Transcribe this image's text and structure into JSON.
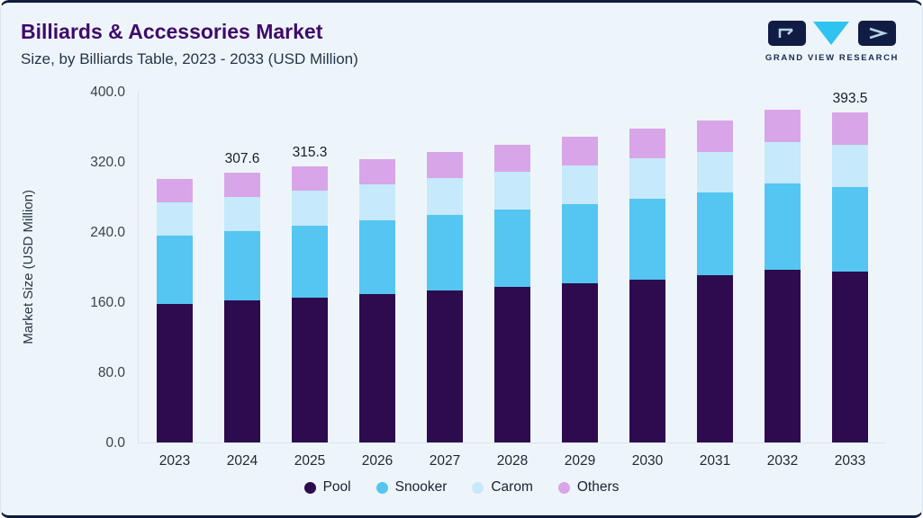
{
  "header": {
    "title": "Billiards & Accessories Market",
    "subtitle": "Size, by Billiards Table, 2023 - 2033 (USD Million)",
    "logo_text": "GRAND VIEW RESEARCH"
  },
  "colors": {
    "background": "#eef5fa",
    "card_border_accent": "#0d1d3d",
    "title": "#3f0a68",
    "logo_navy": "#101c44",
    "logo_cyan": "#31c3ef",
    "pool": "#2d0b4e",
    "snooker": "#54c6f1",
    "carom": "#c6e9fb",
    "others": "#d8a5e8"
  },
  "chart_data": {
    "type": "bar",
    "stacked": true,
    "title": "Billiards & Accessories Market Size, by Billiards Table, 2023 - 2033 (USD Million)",
    "ylabel": "Market Size (USD Million)",
    "ylim": [
      0,
      400
    ],
    "yticks": [
      0,
      80,
      160,
      240,
      320,
      400
    ],
    "ytick_labels": [
      "0.0",
      "80.0",
      "160.0",
      "240.0",
      "320.0",
      "400.0"
    ],
    "grid": false,
    "legend_position": "bottom",
    "categories": [
      "2023",
      "2024",
      "2025",
      "2026",
      "2027",
      "2028",
      "2029",
      "2030",
      "2031",
      "2032",
      "2033"
    ],
    "series": [
      {
        "name": "Pool",
        "color": "#2d0b4e",
        "values": [
          158.1,
          161.8,
          165.6,
          169.5,
          173.5,
          177.6,
          181.8,
          186.1,
          190.5,
          196.8,
          203.3
        ]
      },
      {
        "name": "Snooker",
        "color": "#54c6f1",
        "values": [
          77.6,
          79.5,
          81.5,
          83.6,
          85.7,
          87.9,
          90.1,
          92.4,
          94.8,
          98.2,
          101.7
        ]
      },
      {
        "name": "Carom",
        "color": "#c6e9fb",
        "values": [
          38.0,
          39.0,
          40.0,
          41.0,
          42.0,
          43.1,
          44.2,
          45.3,
          46.5,
          48.1,
          49.8
        ]
      },
      {
        "name": "Others",
        "color": "#d8a5e8",
        "values": [
          26.5,
          27.3,
          28.2,
          29.1,
          30.2,
          31.3,
          32.6,
          34.0,
          35.4,
          36.9,
          38.7
        ]
      }
    ],
    "totals": [
      300.2,
      307.6,
      315.3,
      323.2,
      331.4,
      339.9,
      348.7,
      357.8,
      367.2,
      380.0,
      393.5
    ],
    "annotations": [
      {
        "category": "2024",
        "text": "307.6"
      },
      {
        "category": "2025",
        "text": "315.3"
      },
      {
        "category": "2033",
        "text": "393.5"
      }
    ]
  }
}
